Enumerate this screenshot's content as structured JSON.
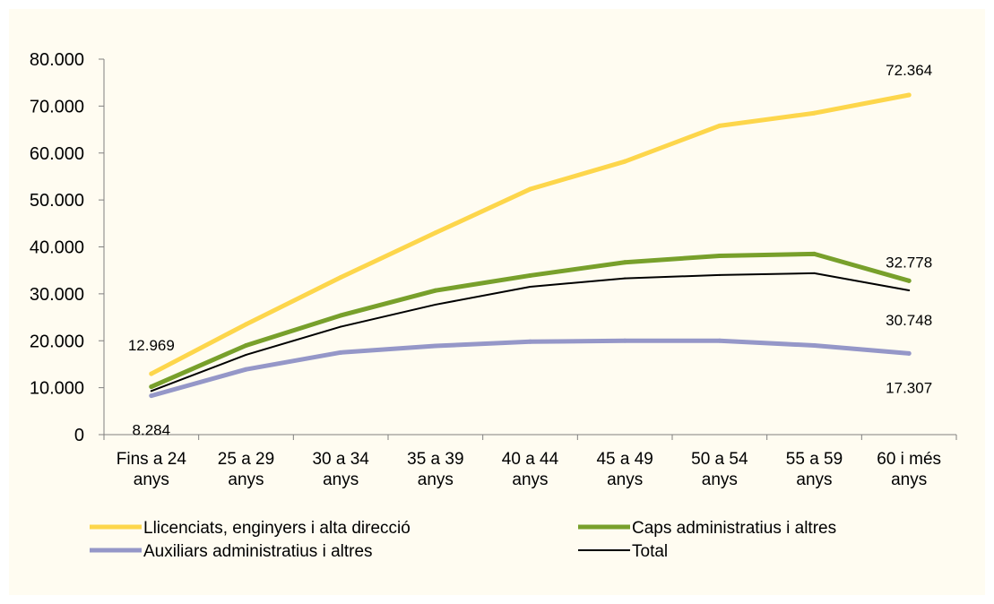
{
  "chart_data": {
    "type": "line",
    "title": "",
    "xlabel": "",
    "ylabel": "",
    "categories": [
      [
        "Fins a 24",
        "anys"
      ],
      [
        "25 a 29",
        "anys"
      ],
      [
        "30 a 34",
        "anys"
      ],
      [
        "35 a 39",
        "anys"
      ],
      [
        "40 a 44",
        "anys"
      ],
      [
        "45 a 49",
        "anys"
      ],
      [
        "50 a 54",
        "anys"
      ],
      [
        "55 a 59",
        "anys"
      ],
      [
        "60 i més",
        "anys"
      ]
    ],
    "ylim": [
      0,
      80000
    ],
    "yticks": [
      0,
      10000,
      20000,
      30000,
      40000,
      50000,
      60000,
      70000,
      80000
    ],
    "ytick_labels": [
      "0",
      "10.000",
      "20.000",
      "30.000",
      "40.000",
      "50.000",
      "60.000",
      "70.000",
      "80.000"
    ],
    "grid": false,
    "legend_position": "bottom",
    "series": [
      {
        "name": "Llicenciats, enginyers i alta direcció",
        "color": "#fdd64b",
        "width": "thick",
        "values": [
          12969,
          23500,
          33500,
          43000,
          52300,
          58200,
          65800,
          68500,
          72364
        ]
      },
      {
        "name": "Caps administratius i altres",
        "color": "#78a02b",
        "width": "thick",
        "values": [
          10200,
          19000,
          25400,
          30700,
          33900,
          36700,
          38100,
          38500,
          32778
        ]
      },
      {
        "name": "Auxiliars administratius i altres",
        "color": "#9597c8",
        "width": "thick",
        "values": [
          8284,
          13900,
          17500,
          18900,
          19800,
          20000,
          20000,
          19000,
          17307
        ]
      },
      {
        "name": "Total",
        "color": "#000000",
        "width": "thin",
        "values": [
          9300,
          17000,
          23000,
          27700,
          31500,
          33300,
          34000,
          34400,
          30748
        ]
      }
    ],
    "data_labels": [
      {
        "series": 0,
        "index": 0,
        "text": "12.969"
      },
      {
        "series": 0,
        "index": 8,
        "text": "72.364"
      },
      {
        "series": 1,
        "index": 8,
        "text": "32.778"
      },
      {
        "series": 2,
        "index": 0,
        "text": "8.284"
      },
      {
        "series": 2,
        "index": 8,
        "text": "17.307"
      },
      {
        "series": 3,
        "index": 8,
        "text": "30.748"
      }
    ]
  },
  "colors": {
    "background": "#fffcf1",
    "axis": "#808080"
  }
}
